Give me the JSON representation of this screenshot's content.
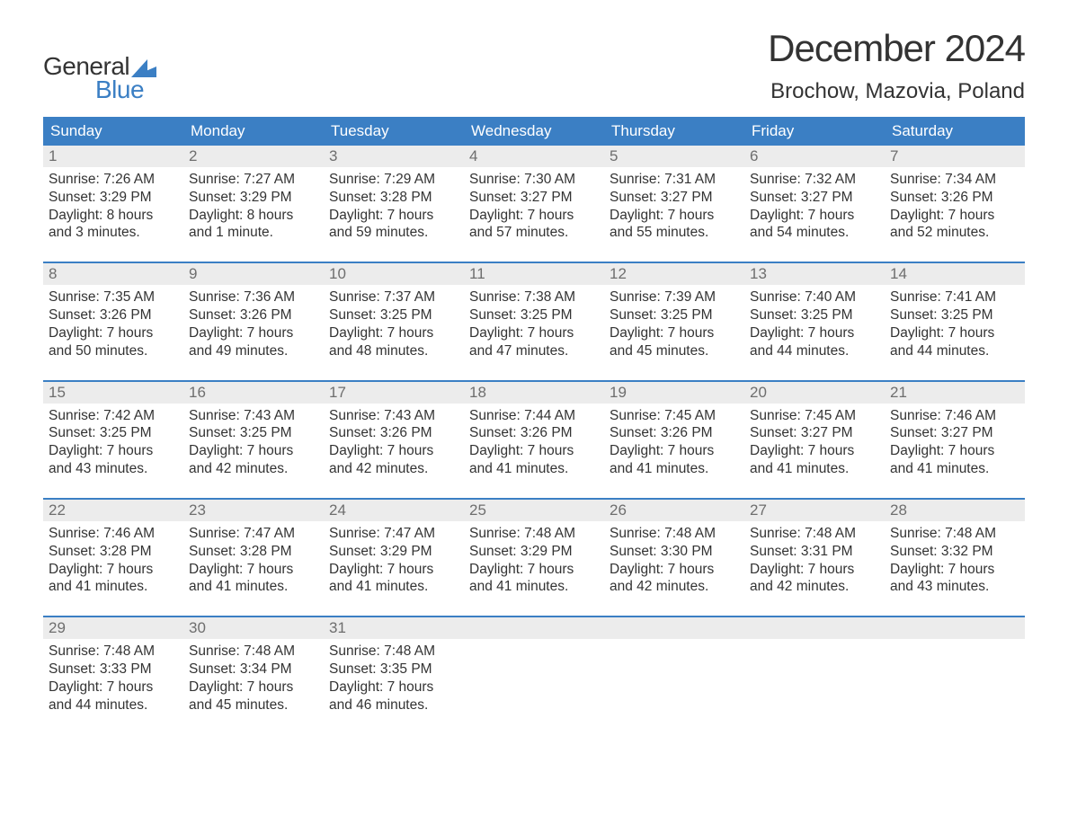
{
  "brand": {
    "name_top": "General",
    "name_bottom": "Blue",
    "text_color_top": "#333333",
    "text_color_bottom": "#3b7fc4",
    "flag_color": "#3b7fc4"
  },
  "header": {
    "month_title": "December 2024",
    "location": "Brochow, Mazovia, Poland"
  },
  "style": {
    "header_bg": "#3b7fc4",
    "header_fg": "#ffffff",
    "daynum_bg": "#ececec",
    "daynum_fg": "#6e6e6e",
    "body_bg": "#ffffff",
    "body_fg": "#333333",
    "week_border": "#3b7fc4",
    "font_title_pt": 42,
    "font_location_pt": 24,
    "font_dayheader_pt": 17,
    "font_daynum_pt": 17,
    "font_body_pt": 15.5
  },
  "day_headers": [
    "Sunday",
    "Monday",
    "Tuesday",
    "Wednesday",
    "Thursday",
    "Friday",
    "Saturday"
  ],
  "weeks": [
    [
      {
        "n": "1",
        "l1": "Sunrise: 7:26 AM",
        "l2": "Sunset: 3:29 PM",
        "l3": "Daylight: 8 hours",
        "l4": "and 3 minutes."
      },
      {
        "n": "2",
        "l1": "Sunrise: 7:27 AM",
        "l2": "Sunset: 3:29 PM",
        "l3": "Daylight: 8 hours",
        "l4": "and 1 minute."
      },
      {
        "n": "3",
        "l1": "Sunrise: 7:29 AM",
        "l2": "Sunset: 3:28 PM",
        "l3": "Daylight: 7 hours",
        "l4": "and 59 minutes."
      },
      {
        "n": "4",
        "l1": "Sunrise: 7:30 AM",
        "l2": "Sunset: 3:27 PM",
        "l3": "Daylight: 7 hours",
        "l4": "and 57 minutes."
      },
      {
        "n": "5",
        "l1": "Sunrise: 7:31 AM",
        "l2": "Sunset: 3:27 PM",
        "l3": "Daylight: 7 hours",
        "l4": "and 55 minutes."
      },
      {
        "n": "6",
        "l1": "Sunrise: 7:32 AM",
        "l2": "Sunset: 3:27 PM",
        "l3": "Daylight: 7 hours",
        "l4": "and 54 minutes."
      },
      {
        "n": "7",
        "l1": "Sunrise: 7:34 AM",
        "l2": "Sunset: 3:26 PM",
        "l3": "Daylight: 7 hours",
        "l4": "and 52 minutes."
      }
    ],
    [
      {
        "n": "8",
        "l1": "Sunrise: 7:35 AM",
        "l2": "Sunset: 3:26 PM",
        "l3": "Daylight: 7 hours",
        "l4": "and 50 minutes."
      },
      {
        "n": "9",
        "l1": "Sunrise: 7:36 AM",
        "l2": "Sunset: 3:26 PM",
        "l3": "Daylight: 7 hours",
        "l4": "and 49 minutes."
      },
      {
        "n": "10",
        "l1": "Sunrise: 7:37 AM",
        "l2": "Sunset: 3:25 PM",
        "l3": "Daylight: 7 hours",
        "l4": "and 48 minutes."
      },
      {
        "n": "11",
        "l1": "Sunrise: 7:38 AM",
        "l2": "Sunset: 3:25 PM",
        "l3": "Daylight: 7 hours",
        "l4": "and 47 minutes."
      },
      {
        "n": "12",
        "l1": "Sunrise: 7:39 AM",
        "l2": "Sunset: 3:25 PM",
        "l3": "Daylight: 7 hours",
        "l4": "and 45 minutes."
      },
      {
        "n": "13",
        "l1": "Sunrise: 7:40 AM",
        "l2": "Sunset: 3:25 PM",
        "l3": "Daylight: 7 hours",
        "l4": "and 44 minutes."
      },
      {
        "n": "14",
        "l1": "Sunrise: 7:41 AM",
        "l2": "Sunset: 3:25 PM",
        "l3": "Daylight: 7 hours",
        "l4": "and 44 minutes."
      }
    ],
    [
      {
        "n": "15",
        "l1": "Sunrise: 7:42 AM",
        "l2": "Sunset: 3:25 PM",
        "l3": "Daylight: 7 hours",
        "l4": "and 43 minutes."
      },
      {
        "n": "16",
        "l1": "Sunrise: 7:43 AM",
        "l2": "Sunset: 3:25 PM",
        "l3": "Daylight: 7 hours",
        "l4": "and 42 minutes."
      },
      {
        "n": "17",
        "l1": "Sunrise: 7:43 AM",
        "l2": "Sunset: 3:26 PM",
        "l3": "Daylight: 7 hours",
        "l4": "and 42 minutes."
      },
      {
        "n": "18",
        "l1": "Sunrise: 7:44 AM",
        "l2": "Sunset: 3:26 PM",
        "l3": "Daylight: 7 hours",
        "l4": "and 41 minutes."
      },
      {
        "n": "19",
        "l1": "Sunrise: 7:45 AM",
        "l2": "Sunset: 3:26 PM",
        "l3": "Daylight: 7 hours",
        "l4": "and 41 minutes."
      },
      {
        "n": "20",
        "l1": "Sunrise: 7:45 AM",
        "l2": "Sunset: 3:27 PM",
        "l3": "Daylight: 7 hours",
        "l4": "and 41 minutes."
      },
      {
        "n": "21",
        "l1": "Sunrise: 7:46 AM",
        "l2": "Sunset: 3:27 PM",
        "l3": "Daylight: 7 hours",
        "l4": "and 41 minutes."
      }
    ],
    [
      {
        "n": "22",
        "l1": "Sunrise: 7:46 AM",
        "l2": "Sunset: 3:28 PM",
        "l3": "Daylight: 7 hours",
        "l4": "and 41 minutes."
      },
      {
        "n": "23",
        "l1": "Sunrise: 7:47 AM",
        "l2": "Sunset: 3:28 PM",
        "l3": "Daylight: 7 hours",
        "l4": "and 41 minutes."
      },
      {
        "n": "24",
        "l1": "Sunrise: 7:47 AM",
        "l2": "Sunset: 3:29 PM",
        "l3": "Daylight: 7 hours",
        "l4": "and 41 minutes."
      },
      {
        "n": "25",
        "l1": "Sunrise: 7:48 AM",
        "l2": "Sunset: 3:29 PM",
        "l3": "Daylight: 7 hours",
        "l4": "and 41 minutes."
      },
      {
        "n": "26",
        "l1": "Sunrise: 7:48 AM",
        "l2": "Sunset: 3:30 PM",
        "l3": "Daylight: 7 hours",
        "l4": "and 42 minutes."
      },
      {
        "n": "27",
        "l1": "Sunrise: 7:48 AM",
        "l2": "Sunset: 3:31 PM",
        "l3": "Daylight: 7 hours",
        "l4": "and 42 minutes."
      },
      {
        "n": "28",
        "l1": "Sunrise: 7:48 AM",
        "l2": "Sunset: 3:32 PM",
        "l3": "Daylight: 7 hours",
        "l4": "and 43 minutes."
      }
    ],
    [
      {
        "n": "29",
        "l1": "Sunrise: 7:48 AM",
        "l2": "Sunset: 3:33 PM",
        "l3": "Daylight: 7 hours",
        "l4": "and 44 minutes."
      },
      {
        "n": "30",
        "l1": "Sunrise: 7:48 AM",
        "l2": "Sunset: 3:34 PM",
        "l3": "Daylight: 7 hours",
        "l4": "and 45 minutes."
      },
      {
        "n": "31",
        "l1": "Sunrise: 7:48 AM",
        "l2": "Sunset: 3:35 PM",
        "l3": "Daylight: 7 hours",
        "l4": "and 46 minutes."
      },
      {
        "n": "",
        "l1": "",
        "l2": "",
        "l3": "",
        "l4": ""
      },
      {
        "n": "",
        "l1": "",
        "l2": "",
        "l3": "",
        "l4": ""
      },
      {
        "n": "",
        "l1": "",
        "l2": "",
        "l3": "",
        "l4": ""
      },
      {
        "n": "",
        "l1": "",
        "l2": "",
        "l3": "",
        "l4": ""
      }
    ]
  ]
}
